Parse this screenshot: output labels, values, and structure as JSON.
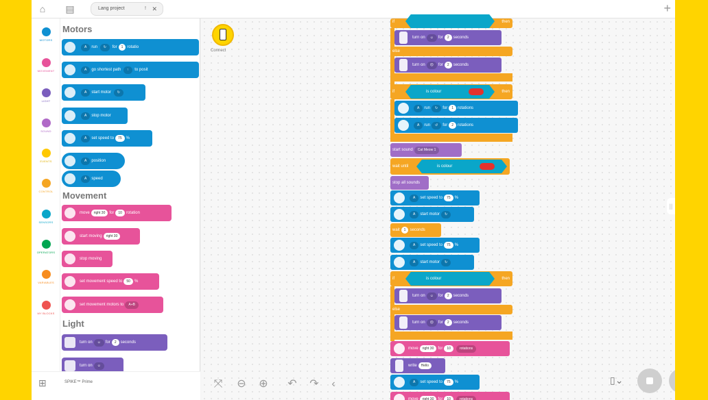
{
  "tab": {
    "title": "Lang project",
    "modified_marker": "!",
    "close_glyph": "✕"
  },
  "categories": [
    {
      "label": "MOTORS",
      "color": "#0f90d2"
    },
    {
      "label": "MOVEMENT",
      "color": "#e7539a"
    },
    {
      "label": "LIGHT",
      "color": "#7b5ebd"
    },
    {
      "label": "SOUND",
      "color": "#b06ac7"
    },
    {
      "label": "EVENTS",
      "color": "#ffc800"
    },
    {
      "label": "CONTROL",
      "color": "#f5a623"
    },
    {
      "label": "SENSORS",
      "color": "#0aa6c9"
    },
    {
      "label": "OPERATORS",
      "color": "#00a651"
    },
    {
      "label": "VARIABLES",
      "color": "#f78c1e"
    },
    {
      "label": "MY BLOCKS",
      "color": "#ef5350"
    }
  ],
  "palette": {
    "sections": {
      "motors": "Motors",
      "movement": "Movement",
      "light": "Light"
    },
    "motors": [
      {
        "port": "A",
        "text": "run",
        "dir": "↻",
        "for": "for",
        "num": "1",
        "unit": "rotatio"
      },
      {
        "port": "A",
        "text": "go shortest path",
        "dir": "↑",
        "to": "to posit"
      },
      {
        "port": "A",
        "text": "start motor",
        "dir": "↻"
      },
      {
        "port": "A",
        "text": "stop motor"
      },
      {
        "port": "A",
        "text": "set speed to",
        "num": "75",
        "unit": "%"
      },
      {
        "port": "A",
        "text": "position"
      },
      {
        "port": "A",
        "text": "speed"
      }
    ],
    "movement": [
      {
        "text": "move",
        "a": "right 30",
        "for": "for",
        "num": "10",
        "unit": "rotation"
      },
      {
        "text": "start moving",
        "a": "right 30"
      },
      {
        "text": "stop moving"
      },
      {
        "text": "set movement speed to",
        "num": "50",
        "unit": "%"
      },
      {
        "text": "set movement motors to",
        "a": "A+B"
      }
    ],
    "light": [
      {
        "text": "turn on",
        "for": "for",
        "num": "2",
        "unit": "seconds"
      },
      {
        "text": "turn on"
      }
    ]
  },
  "bottom_hub": "SPIKE™ Prime",
  "connect_label": "Connect",
  "script": {
    "if": "if",
    "then": "then",
    "else": "else",
    "is_colour": "is colour",
    "turn_on": "turn on",
    "for": "for",
    "seconds": "seconds",
    "two": "2",
    "one": "1",
    "A": "A",
    "run": "run",
    "rotations": "rotations",
    "start_sound": "start sound",
    "sound_name": "Cat Meow 1",
    "wait_until": "wait until",
    "stop_all_sounds": "stop all sounds",
    "set_speed_to": "set speed to",
    "pct": "%",
    "speed_val": "75",
    "start_motor": "start motor",
    "wait": "wait",
    "wait_num": "1",
    "seconds2": "seconds",
    "move": "move",
    "right30": "right 30",
    "ten": "10",
    "write": "write",
    "hello": "Hello"
  }
}
